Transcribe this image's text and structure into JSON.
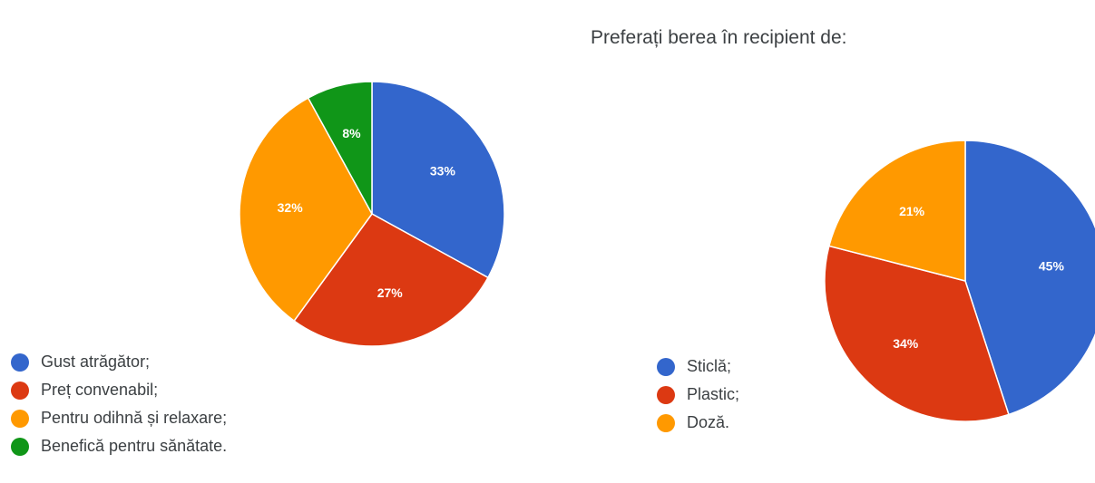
{
  "chart_data": [
    {
      "type": "pie",
      "title": "",
      "response_count": "",
      "categories": [
        "Gust atrăgător;",
        "Preț convenabil;",
        "Pentru odihnă și relaxare;",
        "Benefică pentru sănătate."
      ],
      "values": [
        33,
        27,
        32,
        8
      ],
      "value_labels": [
        "33%",
        "27%",
        "32%",
        "8%"
      ],
      "colors": [
        "#3366cc",
        "#dc3912",
        "#ff9900",
        "#109618"
      ],
      "start_angle_deg": 90,
      "direction": "clockwise",
      "legend_position": "bottom-left"
    },
    {
      "type": "pie",
      "title": "Preferați berea în recipient de:",
      "response_count": "",
      "categories": [
        "Sticlă;",
        "Plastic;",
        "Doză."
      ],
      "values": [
        45,
        34,
        21
      ],
      "value_labels": [
        "45%",
        "34%",
        "21%"
      ],
      "colors": [
        "#3366cc",
        "#dc3912",
        "#ff9900"
      ],
      "start_angle_deg": 90,
      "direction": "clockwise",
      "legend_position": "bottom-left"
    }
  ]
}
